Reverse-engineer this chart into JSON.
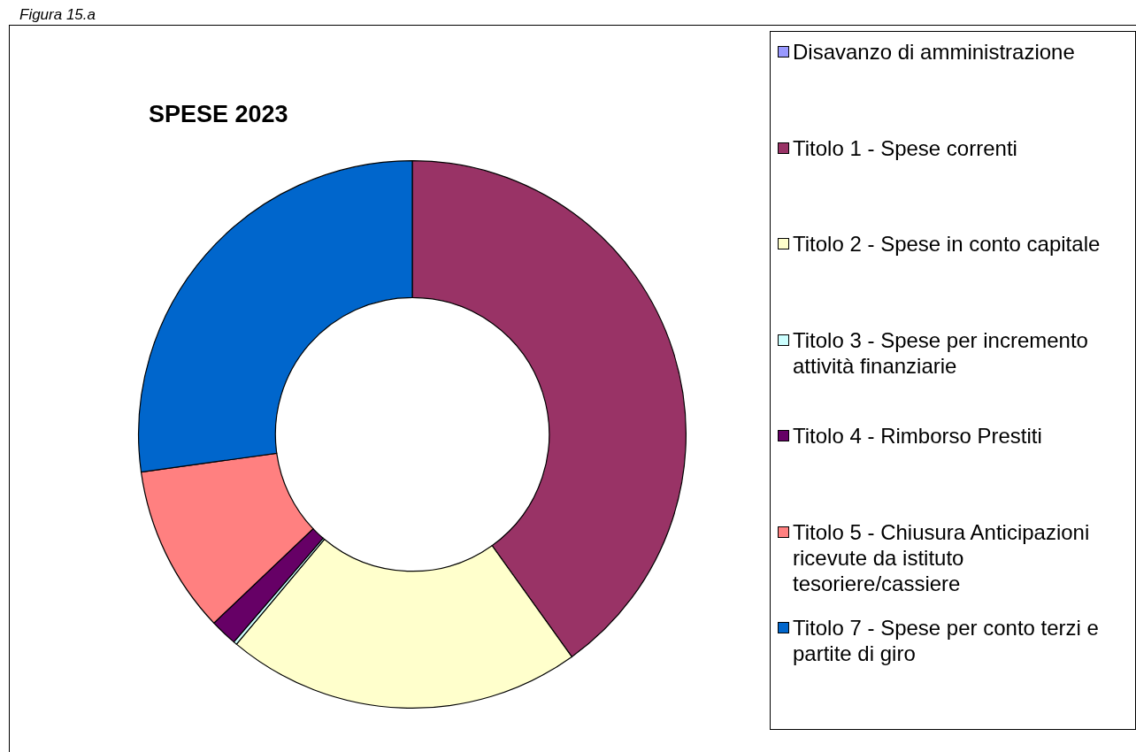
{
  "chart_data": {
    "type": "donut",
    "title": "SPESE 2023",
    "annotations": [
      "Figura 15.a"
    ],
    "categories": [
      "Disavanzo di amministrazione",
      "Titolo 1 - Spese correnti",
      "Titolo 2 - Spese in conto capitale",
      "Titolo 3 - Spese per incremento attività finanziarie",
      "Titolo 4 - Rimborso Prestiti",
      "Titolo 5 - Chiusura Anticipazioni ricevute da istituto tesoriere/cassiere",
      "Titolo 7 - Spese per conto terzi e partite di giro"
    ],
    "values": [
      0,
      40.1,
      21.0,
      0.2,
      1.6,
      9.9,
      27.2
    ],
    "colors": [
      "#9999ff",
      "#993366",
      "#ffffcc",
      "#ccffff",
      "#660066",
      "#ff8080",
      "#0066cc"
    ],
    "legend": "right"
  }
}
